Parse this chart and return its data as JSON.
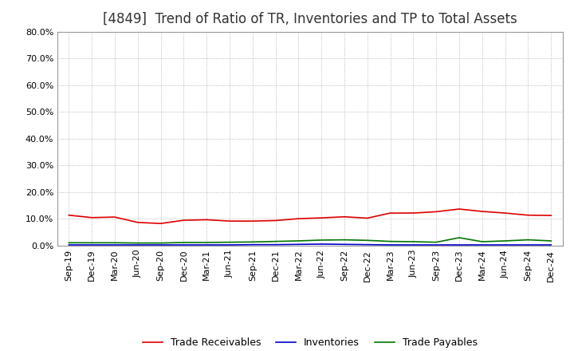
{
  "title": "[4849]  Trend of Ratio of TR, Inventories and TP to Total Assets",
  "x_labels": [
    "Sep-19",
    "Dec-19",
    "Mar-20",
    "Jun-20",
    "Sep-20",
    "Dec-20",
    "Mar-21",
    "Jun-21",
    "Sep-21",
    "Dec-21",
    "Mar-22",
    "Jun-22",
    "Sep-22",
    "Dec-22",
    "Mar-23",
    "Jun-23",
    "Sep-23",
    "Dec-23",
    "Mar-24",
    "Jun-24",
    "Sep-24",
    "Dec-24"
  ],
  "trade_receivables": [
    0.114,
    0.105,
    0.107,
    0.087,
    0.083,
    0.095,
    0.097,
    0.092,
    0.092,
    0.094,
    0.101,
    0.104,
    0.108,
    0.103,
    0.122,
    0.122,
    0.127,
    0.137,
    0.128,
    0.122,
    0.114,
    0.113
  ],
  "inventories": [
    0.003,
    0.003,
    0.003,
    0.003,
    0.003,
    0.003,
    0.003,
    0.003,
    0.004,
    0.004,
    0.005,
    0.006,
    0.005,
    0.004,
    0.003,
    0.003,
    0.003,
    0.003,
    0.003,
    0.003,
    0.003,
    0.003
  ],
  "trade_payables": [
    0.011,
    0.011,
    0.011,
    0.01,
    0.01,
    0.012,
    0.012,
    0.013,
    0.014,
    0.016,
    0.018,
    0.021,
    0.022,
    0.02,
    0.016,
    0.015,
    0.013,
    0.03,
    0.015,
    0.018,
    0.022,
    0.018
  ],
  "tr_color": "#dd0000",
  "inv_color": "#0000cc",
  "tp_color": "#007700",
  "ylim": [
    0.0,
    0.8
  ],
  "yticks": [
    0.0,
    0.1,
    0.2,
    0.3,
    0.4,
    0.5,
    0.6,
    0.7,
    0.8
  ],
  "figure_bg": "#ffffff",
  "plot_bg": "#ffffff",
  "grid_color": "#aaaaaa",
  "title_fontsize": 12,
  "tick_fontsize": 8,
  "legend_fontsize": 9
}
